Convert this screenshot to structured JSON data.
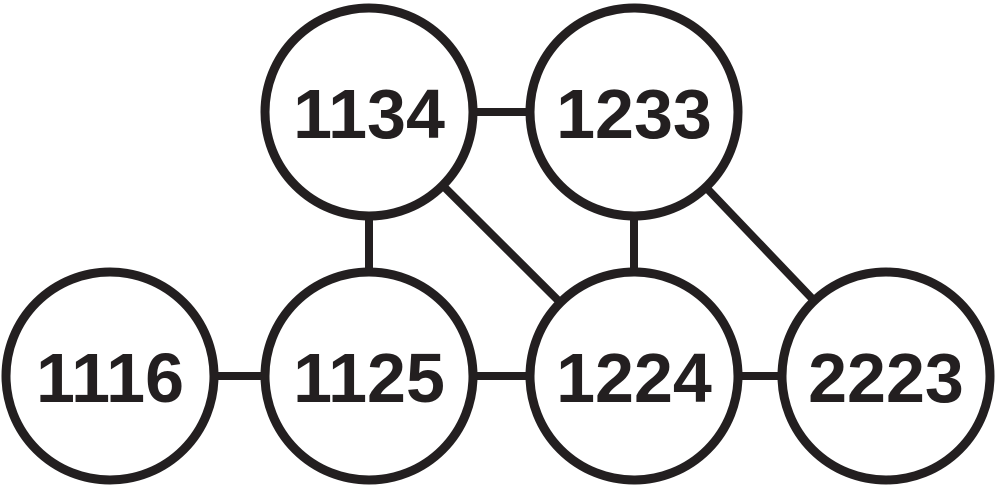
{
  "nodes": [
    {
      "id": "n1134",
      "label": "1134"
    },
    {
      "id": "n1233",
      "label": "1233"
    },
    {
      "id": "n1116",
      "label": "1116"
    },
    {
      "id": "n1125",
      "label": "1125"
    },
    {
      "id": "n1224",
      "label": "1224"
    },
    {
      "id": "n2223",
      "label": "2223"
    }
  ],
  "edges": [
    {
      "from": "n1134",
      "to": "n1233"
    },
    {
      "from": "n1134",
      "to": "n1125"
    },
    {
      "from": "n1134",
      "to": "n1224"
    },
    {
      "from": "n1233",
      "to": "n1224"
    },
    {
      "from": "n1233",
      "to": "n2223"
    },
    {
      "from": "n1116",
      "to": "n1125"
    },
    {
      "from": "n1125",
      "to": "n1224"
    },
    {
      "from": "n1224",
      "to": "n2223"
    }
  ],
  "colors": {
    "stroke": "#231f20",
    "fill": "#ffffff"
  }
}
